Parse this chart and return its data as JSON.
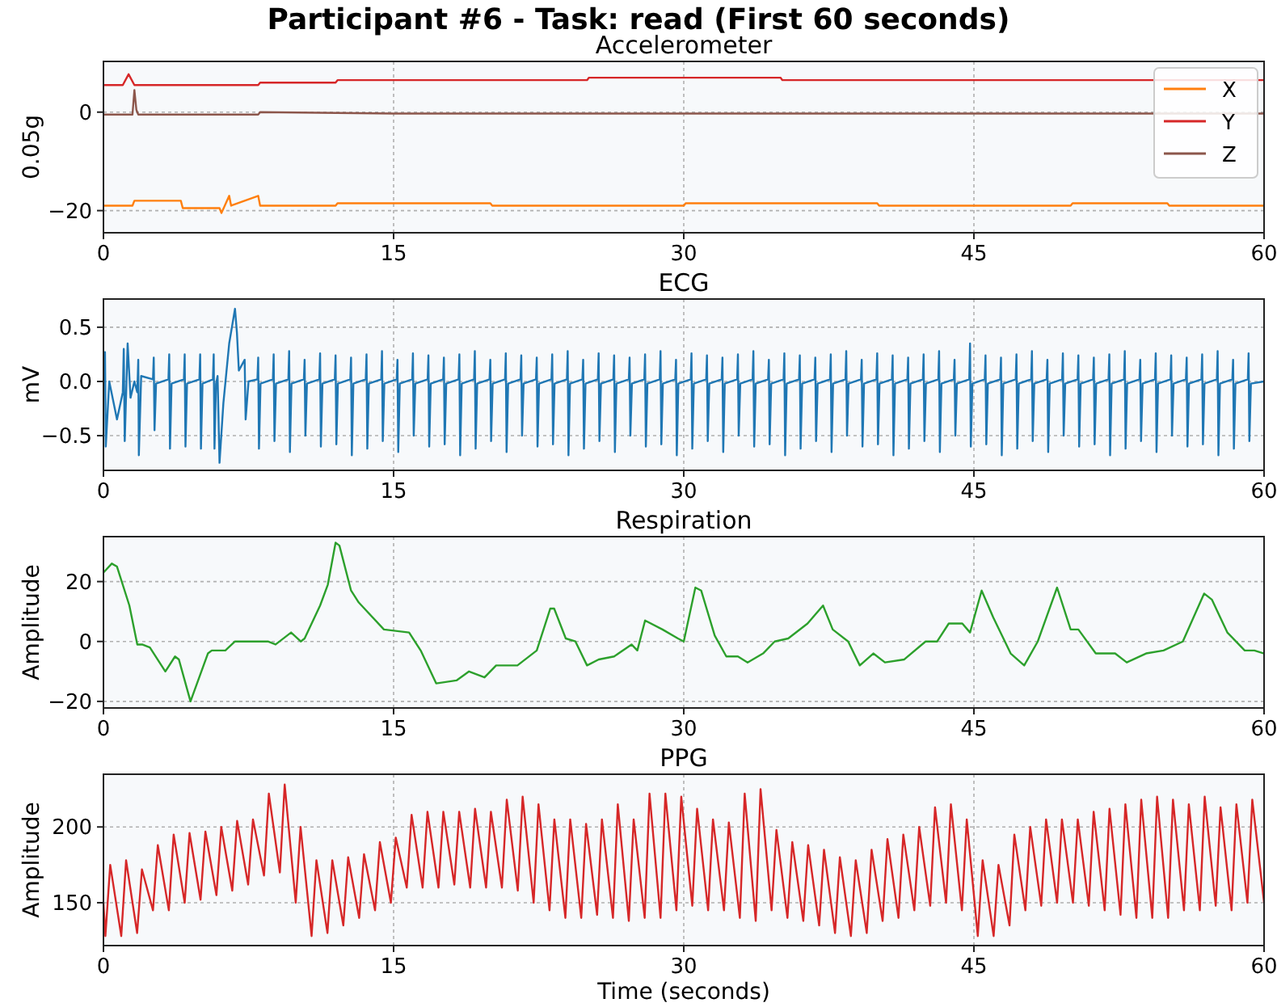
{
  "chart_data": [
    {
      "type": "line",
      "title": "Accelerometer",
      "ylabel": "0.05g",
      "annotations": [
        "Participant #6 - Task: read (First 60 seconds)"
      ],
      "legend": "top right",
      "grid": true,
      "xlim": [
        0,
        60
      ],
      "xticks": [
        0,
        15,
        30,
        45,
        60
      ],
      "ylim": [
        -24.5,
        10.3
      ],
      "yticks": [
        {
          "value": -20,
          "label": "−20"
        },
        0
      ],
      "series": [
        {
          "name": "X",
          "color": "#ff7f0e",
          "x": [
            0,
            1.5,
            1.6,
            4,
            4.1,
            6,
            6.1,
            6.5,
            6.6,
            8,
            8.1,
            12,
            12.1,
            20,
            20.1,
            30,
            30.1,
            40,
            40.1,
            50,
            50.1,
            55,
            55.1,
            60
          ],
          "values": [
            -19,
            -19,
            -18,
            -18,
            -19.5,
            -19.5,
            -20.5,
            -17,
            -19,
            -17,
            -19,
            -19,
            -18.5,
            -18.5,
            -19,
            -19,
            -18.5,
            -18.5,
            -19,
            -19,
            -18.5,
            -18.5,
            -19,
            -19
          ]
        },
        {
          "name": "Y",
          "color": "#d62728",
          "x": [
            0,
            1,
            1.3,
            1.6,
            5,
            8,
            8.1,
            10,
            12,
            12.1,
            20,
            25,
            25.1,
            30,
            35,
            35.1,
            40,
            45,
            50,
            60
          ],
          "values": [
            5.5,
            5.5,
            7.7,
            5.5,
            5.5,
            5.5,
            6,
            6,
            6,
            6.5,
            6.5,
            6.5,
            7,
            7,
            7,
            6.5,
            6.5,
            6.5,
            6.5,
            6.5
          ]
        },
        {
          "name": "Z",
          "color": "#8c564b",
          "x": [
            0,
            1.5,
            1.6,
            1.7,
            1.8,
            5,
            8,
            8.1,
            15,
            20,
            30,
            40,
            50,
            60
          ],
          "values": [
            -0.5,
            -0.5,
            4.5,
            0.5,
            -0.5,
            -0.5,
            -0.5,
            0,
            -0.3,
            -0.3,
            -0.3,
            -0.3,
            -0.3,
            -0.3
          ]
        }
      ]
    },
    {
      "type": "line",
      "title": "ECG",
      "ylabel": "mV",
      "grid": true,
      "xlim": [
        0,
        60
      ],
      "xticks": [
        0,
        15,
        30,
        45,
        60
      ],
      "ylim": [
        -0.82,
        0.76
      ],
      "yticks": [
        {
          "value": -0.5,
          "label": "−0.5"
        },
        {
          "value": 0,
          "label": "0.0"
        },
        0.5
      ],
      "series": [
        {
          "color": "#1f77b4",
          "x": [
            0,
            0.08,
            0.12,
            0.3,
            0.7,
            1.0,
            1.05,
            1.1,
            1.25,
            1.4,
            1.6,
            1.75,
            1.8,
            1.83,
            1.95,
            2.56,
            2.6,
            2.64,
            2.72,
            3.36,
            3.4,
            3.44,
            3.52,
            4.16,
            4.2,
            4.24,
            4.32,
            4.96,
            5.0,
            5.04,
            5.12,
            5.66,
            5.7,
            5.74,
            5.82,
            5.9,
            6.0,
            6.2,
            6.5,
            6.8,
            6.9,
            7.0,
            7.3,
            7.35,
            7.5,
            7.96,
            8.0,
            8.04,
            8.12,
            8.76,
            8.8,
            8.84,
            8.92,
            9.56,
            9.6,
            9.64,
            9.72,
            10.36,
            10.4,
            10.44,
            10.52,
            11.16,
            11.2,
            11.24,
            11.32,
            11.96,
            12.0,
            12.04,
            12.12,
            12.76,
            12.8,
            12.84,
            12.92,
            13.56,
            13.6,
            13.64,
            13.72,
            14.36,
            14.4,
            14.44,
            14.52,
            15.16,
            15.2,
            15.24,
            15.32,
            15.96,
            16.0,
            16.04,
            16.12,
            16.76,
            16.8,
            16.84,
            16.92,
            17.56,
            17.6,
            17.64,
            17.72,
            18.36,
            18.4,
            18.44,
            18.52,
            19.16,
            19.2,
            19.24,
            19.32,
            19.96,
            20.0,
            20.04,
            20.12,
            20.76,
            20.8,
            20.84,
            20.92,
            21.56,
            21.6,
            21.64,
            21.72,
            22.36,
            22.4,
            22.44,
            22.52,
            23.16,
            23.2,
            23.24,
            23.32,
            23.96,
            24.0,
            24.04,
            24.12,
            24.76,
            24.8,
            24.84,
            24.92,
            25.56,
            25.6,
            25.64,
            25.72,
            26.36,
            26.4,
            26.44,
            26.52,
            27.16,
            27.2,
            27.24,
            27.32,
            27.96,
            28.0,
            28.04,
            28.12,
            28.76,
            28.8,
            28.84,
            28.92,
            29.56,
            29.6,
            29.64,
            29.72,
            30.36,
            30.4,
            30.44,
            30.52,
            31.16,
            31.2,
            31.24,
            31.32,
            31.96,
            32.0,
            32.04,
            32.12,
            32.76,
            32.8,
            32.84,
            32.92,
            33.56,
            33.6,
            33.64,
            33.72,
            34.36,
            34.4,
            34.44,
            34.52,
            35.16,
            35.2,
            35.24,
            35.32,
            35.96,
            36.0,
            36.04,
            36.12,
            36.76,
            36.8,
            36.84,
            36.92,
            37.56,
            37.6,
            37.64,
            37.72,
            38.36,
            38.4,
            38.44,
            38.52,
            39.16,
            39.2,
            39.24,
            39.32,
            39.96,
            40.0,
            40.04,
            40.12,
            40.76,
            40.8,
            40.84,
            40.92,
            41.56,
            41.6,
            41.64,
            41.72,
            42.36,
            42.4,
            42.44,
            42.52,
            43.16,
            43.2,
            43.24,
            43.32,
            43.96,
            44.0,
            44.04,
            44.12,
            44.76,
            44.8,
            44.84,
            44.92,
            45.56,
            45.6,
            45.64,
            45.72,
            46.36,
            46.4,
            46.44,
            46.52,
            47.16,
            47.2,
            47.24,
            47.32,
            47.96,
            48.0,
            48.04,
            48.12,
            48.76,
            48.8,
            48.84,
            48.92,
            49.56,
            49.6,
            49.64,
            49.72,
            50.36,
            50.4,
            50.44,
            50.52,
            51.16,
            51.2,
            51.24,
            51.32,
            51.96,
            52.0,
            52.04,
            52.12,
            52.76,
            52.8,
            52.84,
            52.92,
            53.56,
            53.6,
            53.64,
            53.72,
            54.36,
            54.4,
            54.44,
            54.52,
            55.16,
            55.2,
            55.24,
            55.32,
            55.96,
            56.0,
            56.04,
            56.12,
            56.76,
            56.8,
            56.84,
            56.92,
            57.56,
            57.6,
            57.64,
            57.72,
            58.36,
            58.4,
            58.44,
            58.52,
            59.16,
            59.2,
            59.24,
            59.32,
            60
          ],
          "values": [
            0,
            0.27,
            -0.6,
            0,
            -0.35,
            -0.1,
            0.3,
            -0.55,
            0.35,
            -0.15,
            0,
            -0.1,
            0.2,
            -0.68,
            0.05,
            0.02,
            0.22,
            -0.45,
            -0.02,
            0.02,
            0.25,
            -0.62,
            -0.02,
            0.02,
            0.25,
            -0.6,
            -0.02,
            0.02,
            0.25,
            -0.62,
            -0.02,
            0.02,
            0.25,
            -0.62,
            -0.02,
            0.05,
            -0.75,
            -0.2,
            0.35,
            0.67,
            0.45,
            0.1,
            0.2,
            -0.35,
            0,
            0.02,
            0.22,
            -0.62,
            -0.02,
            0.02,
            0.25,
            -0.55,
            -0.02,
            0.02,
            0.28,
            -0.65,
            -0.02,
            0.02,
            0.2,
            -0.5,
            -0.02,
            0.02,
            0.26,
            -0.6,
            -0.02,
            0.02,
            0.24,
            -0.58,
            -0.02,
            0.02,
            0.22,
            -0.68,
            -0.02,
            0.02,
            0.25,
            -0.62,
            -0.02,
            0.02,
            0.28,
            -0.55,
            -0.02,
            0.02,
            0.2,
            -0.65,
            -0.02,
            0.02,
            0.26,
            -0.5,
            -0.02,
            0.02,
            0.24,
            -0.6,
            -0.02,
            0.02,
            0.22,
            -0.58,
            -0.02,
            0.02,
            0.25,
            -0.68,
            -0.02,
            0.02,
            0.28,
            -0.62,
            -0.02,
            0.02,
            0.2,
            -0.55,
            -0.02,
            0.02,
            0.26,
            -0.65,
            -0.02,
            0.02,
            0.24,
            -0.5,
            -0.02,
            0.02,
            0.22,
            -0.6,
            -0.02,
            0.02,
            0.25,
            -0.58,
            -0.02,
            0.02,
            0.28,
            -0.68,
            -0.02,
            0.02,
            0.2,
            -0.62,
            -0.02,
            0.02,
            0.26,
            -0.55,
            -0.02,
            0.02,
            0.24,
            -0.65,
            -0.02,
            0.02,
            0.22,
            -0.5,
            -0.02,
            0.02,
            0.25,
            -0.6,
            -0.02,
            0.02,
            0.28,
            -0.58,
            -0.02,
            0.02,
            0.2,
            -0.68,
            -0.02,
            0.02,
            0.26,
            -0.62,
            -0.02,
            0.02,
            0.24,
            -0.55,
            -0.02,
            0.02,
            0.22,
            -0.65,
            -0.02,
            0.02,
            0.25,
            -0.5,
            -0.02,
            0.02,
            0.28,
            -0.6,
            -0.02,
            0.02,
            0.2,
            -0.58,
            -0.02,
            0.02,
            0.26,
            -0.68,
            -0.02,
            0.02,
            0.24,
            -0.62,
            -0.02,
            0.02,
            0.22,
            -0.55,
            -0.02,
            0.02,
            0.25,
            -0.65,
            -0.02,
            0.02,
            0.28,
            -0.5,
            -0.02,
            0.02,
            0.2,
            -0.6,
            -0.02,
            0.02,
            0.26,
            -0.58,
            -0.02,
            0.02,
            0.24,
            -0.68,
            -0.02,
            0.02,
            0.22,
            -0.62,
            -0.02,
            0.02,
            0.25,
            -0.55,
            -0.02,
            0.02,
            0.28,
            -0.65,
            -0.02,
            0.02,
            0.2,
            -0.5,
            -0.02,
            0.02,
            0.35,
            -0.6,
            -0.02,
            0.02,
            0.24,
            -0.58,
            -0.02,
            0.02,
            0.22,
            -0.68,
            -0.02,
            0.02,
            0.25,
            -0.62,
            -0.02,
            0.02,
            0.28,
            -0.55,
            -0.02,
            0.02,
            0.2,
            -0.65,
            -0.02,
            0.02,
            0.26,
            -0.5,
            -0.02,
            0.02,
            0.24,
            -0.6,
            -0.02,
            0.02,
            0.22,
            -0.58,
            -0.02,
            0.02,
            0.25,
            -0.68,
            -0.02,
            0.02,
            0.28,
            -0.62,
            -0.02,
            0.02,
            0.2,
            -0.55,
            -0.02,
            0.02,
            0.26,
            -0.65,
            -0.02,
            0.02,
            0.24,
            -0.5,
            -0.02,
            0.02,
            0.22,
            -0.6,
            -0.02,
            0.02,
            0.25,
            -0.58,
            -0.02,
            0.02,
            0.28,
            -0.68,
            -0.02,
            0.02,
            0.2,
            -0.62,
            -0.02,
            0.02,
            0.26,
            -0.55,
            -0.02,
            0
          ]
        }
      ]
    },
    {
      "type": "line",
      "title": "Respiration",
      "ylabel": "Amplitude",
      "grid": true,
      "xlim": [
        0,
        60
      ],
      "xticks": [
        0,
        15,
        30,
        45,
        60
      ],
      "ylim": [
        -22.2,
        35
      ],
      "yticks": [
        {
          "value": -20,
          "label": "−20"
        },
        0,
        20
      ],
      "series": [
        {
          "color": "#2ca02c",
          "x": [
            0,
            0.43,
            0.7,
            1.34,
            1.75,
            2.0,
            2.4,
            3.2,
            3.7,
            3.9,
            4.5,
            5.4,
            5.6,
            6.3,
            6.8,
            8.5,
            8.9,
            9.7,
            10.2,
            10.4,
            11.2,
            11.6,
            12.0,
            12.2,
            12.8,
            13.2,
            14.5,
            15.8,
            16.4,
            17.2,
            18.25,
            18.9,
            19.7,
            20.3,
            21.4,
            22.4,
            23.1,
            23.3,
            23.9,
            24.4,
            25.0,
            25.6,
            26.4,
            27.3,
            27.6,
            28.0,
            28.9,
            29.7,
            30.0,
            30.6,
            30.9,
            31.6,
            32.2,
            32.8,
            33.3,
            34.1,
            34.7,
            35.4,
            36.4,
            37.2,
            37.7,
            38.5,
            39.1,
            39.8,
            40.4,
            41.4,
            42.5,
            43.1,
            43.7,
            44.4,
            44.8,
            45.4,
            46.0,
            46.9,
            47.6,
            48.3,
            49.3,
            50.0,
            50.4,
            51.3,
            52.3,
            52.9,
            53.9,
            54.8,
            55.8,
            56.9,
            57.3,
            58.1,
            59.0,
            59.5,
            60
          ],
          "values": [
            23,
            26,
            25,
            12,
            -1,
            -1,
            -2,
            -10,
            -5,
            -6,
            -20,
            -4,
            -3,
            -3,
            0,
            0,
            -1,
            3,
            0,
            1,
            12,
            19,
            33,
            32,
            17,
            13,
            4,
            3,
            -3,
            -14,
            -13,
            -10,
            -12,
            -8,
            -8,
            -3,
            11,
            11,
            1,
            0,
            -8,
            -6,
            -5,
            -1,
            -3,
            7,
            4,
            1,
            0,
            18,
            17,
            2,
            -5,
            -5,
            -7,
            -4,
            0,
            1,
            6,
            12,
            4,
            0,
            -8,
            -4,
            -7,
            -6,
            0,
            0,
            6,
            6,
            3,
            17,
            8,
            -4,
            -8,
            0,
            18,
            4,
            4,
            -4,
            -4,
            -7,
            -4,
            -3,
            0,
            16,
            14,
            3,
            -3,
            -3,
            -4
          ]
        }
      ]
    },
    {
      "type": "line",
      "title": "PPG",
      "ylabel": "Amplitude",
      "xlabel": "Time (seconds)",
      "grid": true,
      "xlim": [
        0,
        60
      ],
      "xticks": [
        0,
        15,
        30,
        45,
        60
      ],
      "ylim": [
        121.7,
        234.8
      ],
      "yticks": [
        150,
        200
      ],
      "series": [
        {
          "color": "#d62728",
          "x": [
            0,
            0.1,
            0.35,
            0.92,
            1.17,
            1.74,
            1.99,
            2.56,
            2.81,
            3.38,
            3.63,
            4.2,
            4.45,
            5.02,
            5.27,
            5.84,
            6.09,
            6.66,
            6.91,
            7.48,
            7.73,
            8.3,
            8.55,
            9.12,
            9.37,
            9.94,
            10.19,
            10.76,
            11.01,
            11.58,
            11.83,
            12.4,
            12.65,
            13.22,
            13.47,
            14.04,
            14.29,
            14.86,
            15.11,
            15.68,
            15.93,
            16.5,
            16.75,
            17.32,
            17.57,
            18.14,
            18.39,
            18.96,
            19.21,
            19.78,
            20.03,
            20.6,
            20.85,
            21.42,
            21.67,
            22.24,
            22.49,
            23.06,
            23.31,
            23.88,
            24.13,
            24.7,
            24.95,
            25.52,
            25.77,
            26.34,
            26.59,
            27.16,
            27.41,
            27.98,
            28.23,
            28.8,
            29.05,
            29.62,
            29.87,
            30.44,
            30.69,
            31.26,
            31.51,
            32.08,
            32.33,
            32.9,
            33.15,
            33.72,
            33.97,
            34.54,
            34.79,
            35.36,
            35.61,
            36.18,
            36.43,
            37.0,
            37.25,
            37.82,
            38.07,
            38.64,
            38.89,
            39.46,
            39.71,
            40.28,
            40.53,
            41.1,
            41.35,
            41.92,
            42.17,
            42.74,
            42.99,
            43.56,
            43.81,
            44.38,
            44.63,
            45.2,
            45.45,
            46.02,
            46.27,
            46.84,
            47.09,
            47.66,
            47.91,
            48.48,
            48.73,
            49.3,
            49.55,
            50.12,
            50.37,
            50.94,
            51.19,
            51.76,
            52.01,
            52.58,
            52.83,
            53.4,
            53.65,
            54.22,
            54.47,
            55.04,
            55.29,
            55.86,
            56.11,
            56.68,
            56.93,
            57.5,
            57.75,
            58.32,
            58.57,
            59.14,
            59.39,
            60
          ],
          "values": [
            150,
            128,
            175,
            128,
            178,
            130,
            172,
            145,
            188,
            145,
            195,
            150,
            196,
            152,
            197,
            155,
            200,
            158,
            204,
            162,
            205,
            168,
            222,
            170,
            228,
            150,
            200,
            128,
            178,
            130,
            178,
            135,
            180,
            140,
            182,
            145,
            190,
            150,
            193,
            160,
            208,
            160,
            210,
            160,
            210,
            162,
            210,
            160,
            212,
            160,
            210,
            160,
            218,
            158,
            220,
            150,
            215,
            145,
            205,
            140,
            205,
            140,
            202,
            142,
            205,
            140,
            215,
            138,
            205,
            140,
            222,
            140,
            222,
            145,
            220,
            148,
            212,
            145,
            205,
            145,
            203,
            140,
            222,
            138,
            225,
            145,
            198,
            140,
            190,
            138,
            188,
            135,
            185,
            130,
            180,
            128,
            178,
            130,
            185,
            138,
            192,
            140,
            195,
            145,
            200,
            148,
            213,
            150,
            215,
            145,
            205,
            128,
            178,
            128,
            175,
            135,
            195,
            145,
            200,
            148,
            205,
            150,
            205,
            150,
            205,
            148,
            210,
            145,
            212,
            142,
            215,
            140,
            218,
            140,
            220,
            140,
            218,
            145,
            215,
            145,
            220,
            148,
            213,
            145,
            215,
            150,
            218,
            150
          ]
        }
      ]
    }
  ]
}
